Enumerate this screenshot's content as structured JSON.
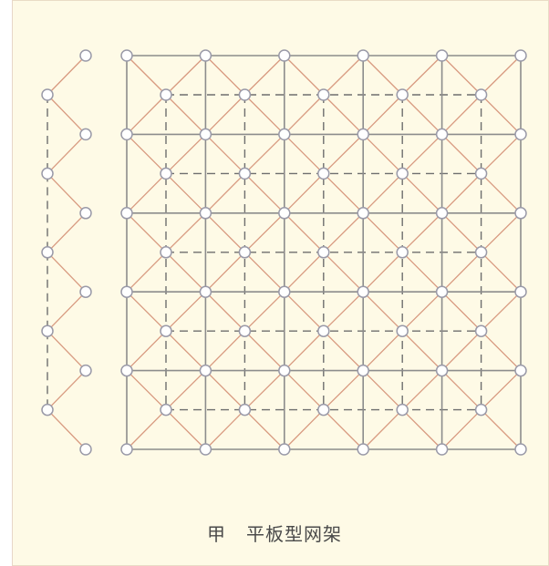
{
  "caption": {
    "label": "甲",
    "title": "平板型网架"
  },
  "colors": {
    "background": "#fefae6",
    "top_chord": "#8c8c8c",
    "web_member": "#d89a80",
    "bottom_chord": "#6e6e6e",
    "node_fill": "#ffffff",
    "node_stroke": "#9a9aa8"
  },
  "diagram": {
    "top_grid_nodes_per_side": 6,
    "bottom_grid_nodes_per_side": 5,
    "side_profile_upper_nodes": 6,
    "side_profile_lower_nodes": 5
  }
}
